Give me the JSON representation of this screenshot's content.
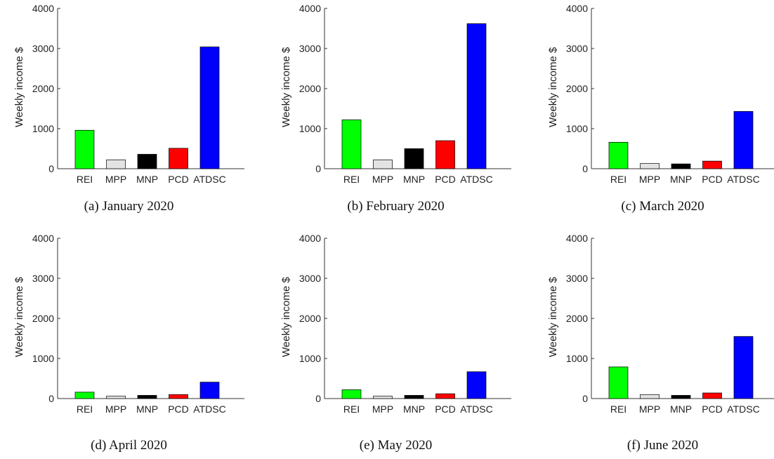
{
  "chart_data": [
    {
      "type": "bar",
      "caption": "(a)  January 2020",
      "ylabel": "Weekly income $",
      "categories": [
        "REI",
        "MPP",
        "MNP",
        "PCD",
        "ATDSC"
      ],
      "values": [
        960,
        220,
        360,
        510,
        3040
      ],
      "ylim": [
        0,
        4000
      ],
      "yticks": [
        0,
        1000,
        2000,
        3000,
        4000
      ],
      "colors": [
        "#00ff00",
        "#e3e3e3",
        "#000000",
        "#ff0000",
        "#0000ff"
      ]
    },
    {
      "type": "bar",
      "caption": "(b)  February 2020",
      "ylabel": "Weekly income $",
      "categories": [
        "REI",
        "MPP",
        "MNP",
        "PCD",
        "ATDSC"
      ],
      "values": [
        1220,
        220,
        500,
        700,
        3620
      ],
      "ylim": [
        0,
        4000
      ],
      "yticks": [
        0,
        1000,
        2000,
        3000,
        4000
      ],
      "colors": [
        "#00ff00",
        "#e3e3e3",
        "#000000",
        "#ff0000",
        "#0000ff"
      ]
    },
    {
      "type": "bar",
      "caption": "(c)  March 2020",
      "ylabel": "Weekly income $",
      "categories": [
        "REI",
        "MPP",
        "MNP",
        "PCD",
        "ATDSC"
      ],
      "values": [
        660,
        130,
        120,
        190,
        1430
      ],
      "ylim": [
        0,
        4000
      ],
      "yticks": [
        0,
        1000,
        2000,
        3000,
        4000
      ],
      "colors": [
        "#00ff00",
        "#e3e3e3",
        "#000000",
        "#ff0000",
        "#0000ff"
      ]
    },
    {
      "type": "bar",
      "caption": "(d)  April 2020",
      "ylabel": "Weekly income $",
      "categories": [
        "REI",
        "MPP",
        "MNP",
        "PCD",
        "ATDSC"
      ],
      "values": [
        160,
        60,
        80,
        100,
        410
      ],
      "ylim": [
        0,
        4000
      ],
      "yticks": [
        0,
        1000,
        2000,
        3000,
        4000
      ],
      "colors": [
        "#00ff00",
        "#e3e3e3",
        "#000000",
        "#ff0000",
        "#0000ff"
      ]
    },
    {
      "type": "bar",
      "caption": "(e)  May 2020",
      "ylabel": "Weekly income $",
      "categories": [
        "REI",
        "MPP",
        "MNP",
        "PCD",
        "ATDSC"
      ],
      "values": [
        220,
        60,
        80,
        120,
        670
      ],
      "ylim": [
        0,
        4000
      ],
      "yticks": [
        0,
        1000,
        2000,
        3000,
        4000
      ],
      "colors": [
        "#00ff00",
        "#e3e3e3",
        "#000000",
        "#ff0000",
        "#0000ff"
      ]
    },
    {
      "type": "bar",
      "caption": "(f)  June 2020",
      "ylabel": "Weekly income $",
      "categories": [
        "REI",
        "MPP",
        "MNP",
        "PCD",
        "ATDSC"
      ],
      "values": [
        790,
        100,
        80,
        140,
        1550
      ],
      "ylim": [
        0,
        4000
      ],
      "yticks": [
        0,
        1000,
        2000,
        3000,
        4000
      ],
      "colors": [
        "#00ff00",
        "#e3e3e3",
        "#000000",
        "#ff0000",
        "#0000ff"
      ]
    }
  ]
}
